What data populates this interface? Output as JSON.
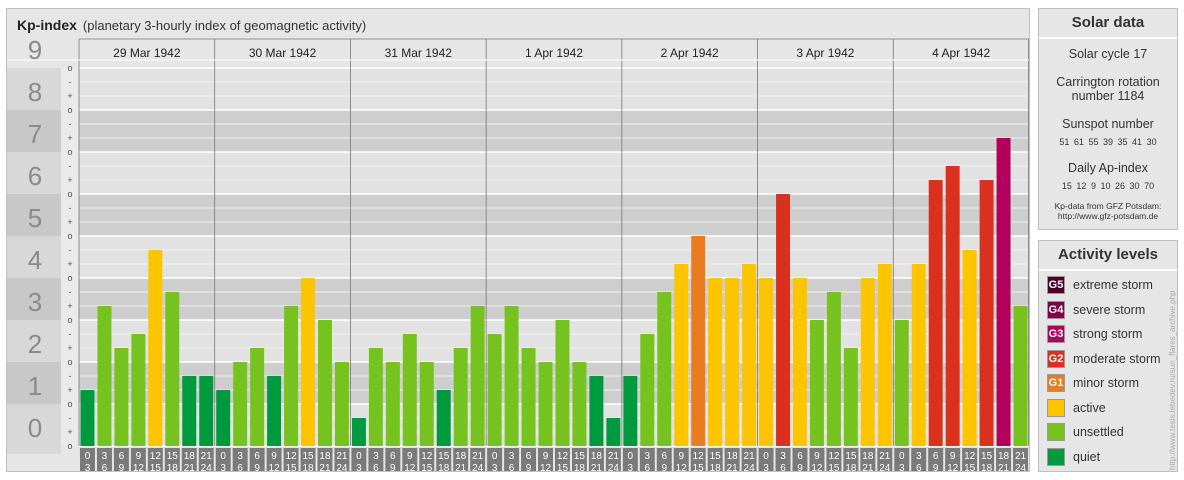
{
  "header": {
    "title": "Kp-index",
    "subtitle": "(planetary 3-hourly index of geomagnetic activity)"
  },
  "chart_data": {
    "type": "bar",
    "title": "Kp-index",
    "subtitle": "(planetary 3-hourly index of geomagnetic activity)",
    "ylim": [
      0,
      9
    ],
    "y_ticks": [
      "0",
      "1",
      "2",
      "3",
      "4",
      "5",
      "6",
      "7",
      "8",
      "9"
    ],
    "minor_tick_labels": [
      "o",
      "+",
      "-"
    ],
    "days": [
      "29 Mar 1942",
      "30 Mar 1942",
      "31 Mar 1942",
      "1 Apr 1942",
      "2 Apr 1942",
      "3 Apr 1942",
      "4 Apr 1942"
    ],
    "interval_labels": [
      [
        "0",
        "3"
      ],
      [
        "3",
        "6"
      ],
      [
        "6",
        "9"
      ],
      [
        "9",
        "12"
      ],
      [
        "12",
        "15"
      ],
      [
        "15",
        "18"
      ],
      [
        "18",
        "21"
      ],
      [
        "21",
        "24"
      ]
    ],
    "values": [
      [
        1.333,
        3.333,
        2.333,
        2.667,
        4.667,
        3.667,
        1.667,
        1.667
      ],
      [
        1.333,
        2,
        2.333,
        1.667,
        3.333,
        4,
        3,
        2
      ],
      [
        0.667,
        2.333,
        2,
        2.667,
        2,
        1.333,
        2.333,
        3.333
      ],
      [
        2.667,
        3.333,
        2.333,
        2,
        3,
        2,
        1.667,
        0.667
      ],
      [
        1.667,
        2.667,
        3.667,
        4.333,
        5,
        4,
        4,
        4.333
      ],
      [
        4,
        6,
        4,
        3,
        3.667,
        2.333,
        4,
        4.333
      ],
      [
        3,
        4.333,
        6.333,
        6.667,
        4.667,
        6.333,
        7.333,
        3.333
      ]
    ],
    "color_scale": {
      "quiet": "#009a3e",
      "unsettled": "#76c21e",
      "active": "#fcc500",
      "G1": "#e87c1e",
      "G2": "#d9311e",
      "G3": "#b3005d",
      "G4": "#80004a",
      "G5": "#4d0026"
    },
    "grid": true
  },
  "solar": {
    "title": "Solar data",
    "cycle": "Solar cycle 17",
    "carrington_line1": "Carrington rotation",
    "carrington_line2": "number 1184",
    "sunspot_label": "Sunspot number",
    "sunspot_values": [
      "51",
      "61",
      "55",
      "39",
      "35",
      "41",
      "30"
    ],
    "ap_label": "Daily Ap-index",
    "ap_values": [
      "15",
      "12",
      "9",
      "10",
      "26",
      "30",
      "70"
    ],
    "source_line1": "Kp-data from GFZ Potsdam:",
    "source_line2": "http://www.gfz-potsdam.de"
  },
  "activity": {
    "title": "Activity levels",
    "levels": [
      {
        "badge": "G5",
        "label": "extreme storm",
        "color": "#4d0026"
      },
      {
        "badge": "G4",
        "label": "severe storm",
        "color": "#80004a"
      },
      {
        "badge": "G3",
        "label": "strong storm",
        "color": "#b3005d"
      },
      {
        "badge": "G2",
        "label": "moderate storm",
        "color": "#d9311e"
      },
      {
        "badge": "G1",
        "label": "minor storm",
        "color": "#e87c1e"
      },
      {
        "badge": "",
        "label": "active",
        "color": "#fcc500"
      },
      {
        "badge": "",
        "label": "unsettled",
        "color": "#76c21e"
      },
      {
        "badge": "",
        "label": "quiet",
        "color": "#009a3e"
      }
    ]
  },
  "credit": "http://www.tesis.lebedev.ru/sun_flares_archive.php"
}
